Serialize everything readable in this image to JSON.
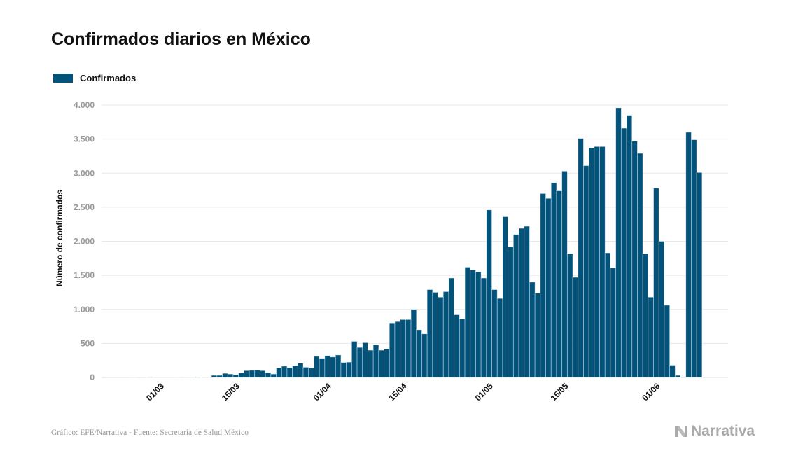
{
  "title": "Confirmados diarios en México",
  "source": "Gráfico: EFE/Narrativa - Fuente: Secretaría de Salud México",
  "logo": "Narrativa",
  "colors": {
    "bar": "#02527a",
    "grid": "#e8e8e8",
    "tick": "#999999"
  },
  "chart_data": {
    "type": "bar",
    "title": "Confirmados diarios en México",
    "ylabel": "Número de confirmados",
    "xlabel": "",
    "legend": {
      "position": "top-left",
      "entries": [
        "Confirmados"
      ]
    },
    "grid": true,
    "ylim": [
      0,
      4000
    ],
    "yticks": [
      0,
      500,
      1000,
      1500,
      2000,
      2500,
      3000,
      3500,
      4000
    ],
    "ytick_labels": [
      "0",
      "500",
      "1.000",
      "1.500",
      "2.000",
      "2.500",
      "3.000",
      "3.500",
      "4.000"
    ],
    "xtick_labels": [
      "01/03",
      "15/03",
      "01/04",
      "15/04",
      "01/05",
      "15/05",
      "01/06"
    ],
    "date_range": [
      "25/02/2020",
      "09/06/2020"
    ],
    "series": [
      {
        "name": "Confirmados",
        "values": [
          1,
          0,
          0,
          5,
          1,
          1,
          1,
          1,
          1,
          2,
          1,
          1,
          7,
          2,
          1,
          30,
          30,
          60,
          50,
          40,
          70,
          100,
          105,
          110,
          100,
          70,
          50,
          140,
          165,
          145,
          175,
          210,
          150,
          140,
          310,
          280,
          320,
          300,
          330,
          220,
          225,
          530,
          440,
          510,
          400,
          480,
          400,
          420,
          800,
          820,
          850,
          850,
          1000,
          700,
          640,
          1290,
          1250,
          1180,
          1260,
          1460,
          920,
          860,
          1620,
          1580,
          1550,
          1460,
          2460,
          1290,
          1160,
          2360,
          1920,
          2100,
          2190,
          2220,
          1400,
          1240,
          2700,
          2630,
          2860,
          2740,
          3030,
          1820,
          1470,
          3510,
          3110,
          3370,
          3390,
          3390,
          1830,
          1610,
          3960,
          3660,
          3850,
          3470,
          3290,
          1820,
          1180,
          2780,
          2000,
          1060,
          180,
          30,
          0,
          3600,
          3490,
          3010
        ]
      }
    ]
  }
}
